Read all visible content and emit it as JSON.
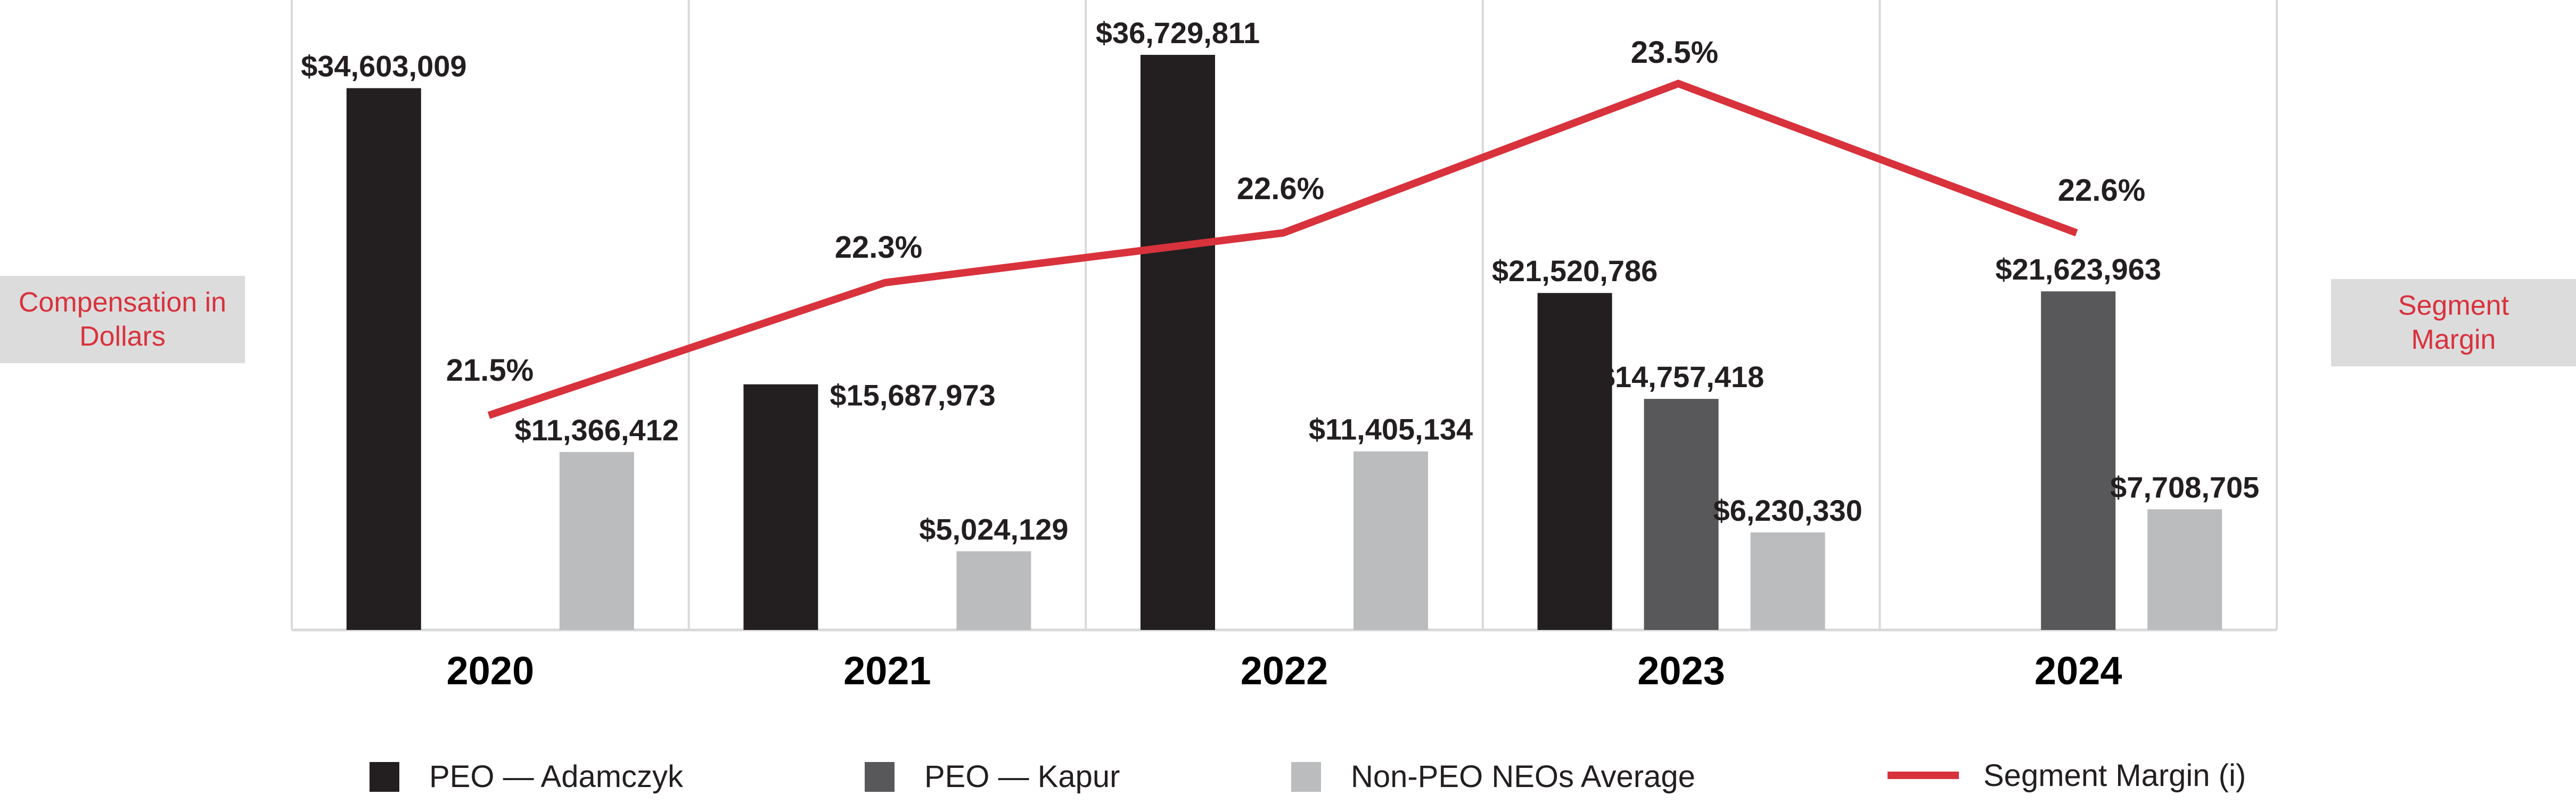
{
  "chart_data": {
    "type": "bar",
    "categories": [
      "2020",
      "2021",
      "2022",
      "2023",
      "2024"
    ],
    "series": [
      {
        "name": "PEO — Adamczyk",
        "color": "#231f20",
        "values": [
          34603009,
          15687973,
          36729811,
          21520786,
          null
        ],
        "labels": [
          "$34,603,009",
          "$15,687,973",
          "$36,729,811",
          "$21,520,786",
          ""
        ]
      },
      {
        "name": "PEO — Kapur",
        "color": "#58585a",
        "values": [
          null,
          null,
          null,
          14757418,
          21623963
        ],
        "labels": [
          "",
          "",
          "",
          "$14,757,418",
          "$21,623,963"
        ]
      },
      {
        "name": "Non-PEO NEOs Average",
        "color": "#bbbcbe",
        "values": [
          11366412,
          5024129,
          11405134,
          6230330,
          7708705
        ],
        "labels": [
          "$11,366,412",
          "$5,024,129",
          "$11,405,134",
          "$6,230,330",
          "$7,708,705"
        ]
      }
    ],
    "line_series": {
      "name": "Segment Margin (i)",
      "color": "#d8323c",
      "values": [
        21.5,
        22.3,
        22.6,
        23.5,
        22.6
      ],
      "labels": [
        "21.5%",
        "22.3%",
        "22.6%",
        "23.5%",
        "22.6%"
      ]
    },
    "ylabel_left": [
      "Compensation in",
      "Dollars"
    ],
    "ylabel_right": [
      "Segment",
      "Margin"
    ],
    "y_range": [
      0,
      38000000
    ],
    "y2_range": [
      20,
      24
    ],
    "legend_position": "bottom"
  }
}
